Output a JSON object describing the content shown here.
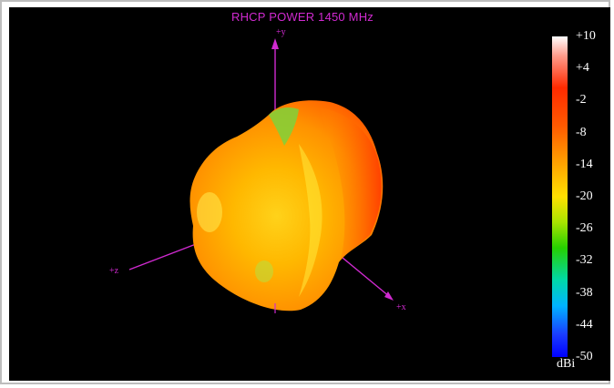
{
  "plot": {
    "title": "RHCP POWER 1450  MHz",
    "axes": {
      "y_label": "+y",
      "z_label": "+z",
      "x_label": "+x"
    },
    "axis_color": "#d02ad0",
    "background": "#000000"
  },
  "colorbar": {
    "unit": "dBi",
    "ticks": [
      "+10",
      "+4",
      "-2",
      "-8",
      "-14",
      "-20",
      "-26",
      "-32",
      "-38",
      "-44",
      "-50"
    ],
    "max": 10,
    "min": -50
  }
}
